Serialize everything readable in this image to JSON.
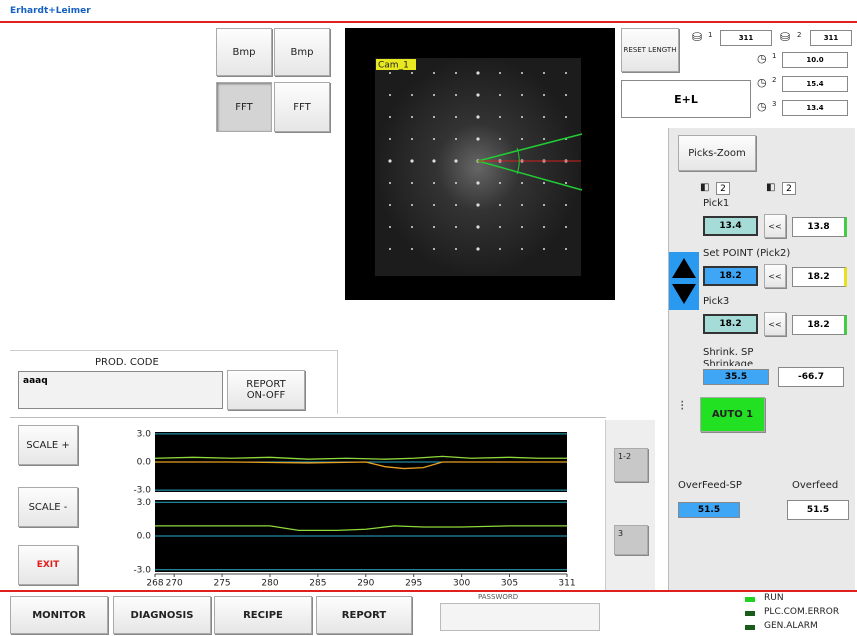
{
  "header": {
    "title": "Erhardt+Leimer"
  },
  "camera": {
    "buttons": [
      "Bmp",
      "Bmp",
      "FFT",
      "FFT"
    ],
    "label": "Cam_1"
  },
  "counters": {
    "reset": "RESET LENGTH",
    "lengths": [
      {
        "index": "1",
        "value": "311"
      },
      {
        "index": "2",
        "value": "311"
      }
    ],
    "gauges": [
      {
        "index": "1",
        "value": "10.0"
      },
      {
        "index": "2",
        "value": "15.4"
      },
      {
        "index": "3",
        "value": "13.4"
      }
    ],
    "brand": "E+L"
  },
  "picks": {
    "zoom": "Picks-Zoom",
    "icons": [
      "2",
      "2"
    ],
    "rows": [
      {
        "label": "Pick1",
        "value": "13.4",
        "button": "<<",
        "actual": "13.8"
      },
      {
        "label": "Set POINT (Pick2)",
        "value": "18.2",
        "button": "<<",
        "actual": "18.2"
      },
      {
        "label": "Pick3",
        "value": "18.2",
        "button": "<<",
        "actual": "18.2"
      }
    ],
    "shrink_label": "Shrink. SP",
    "shrinkage_label": "Shrinkage",
    "shrink_sp": "35.5",
    "shrinkage": "-66.7",
    "auto": "AUTO 1",
    "overfeed_sp_label": "OverFeed-SP",
    "overfeed_sp": "51.5",
    "overfeed_label": "Overfeed",
    "overfeed": "51.5"
  },
  "prod": {
    "label": "PROD. CODE",
    "code": "aaaq",
    "report": "REPORT ON-OFF"
  },
  "trend": {
    "buttons": [
      "SCALE +",
      "SCALE -",
      "EXIT"
    ],
    "groups": [
      "1-2",
      "3"
    ],
    "xlim": [
      268,
      311
    ],
    "xticks": [
      268,
      270,
      275,
      280,
      285,
      290,
      295,
      300,
      305,
      311
    ],
    "plots": [
      {
        "ylim": [
          -3.2,
          3.2
        ],
        "yticks": [
          {
            "value": 3,
            "label": "3.0"
          },
          {
            "value": 0,
            "label": "0.0"
          },
          {
            "value": -3,
            "label": "-3.0"
          }
        ],
        "series": [
          {
            "color": "#8fd93a",
            "x": [
              268,
              272,
              276,
              280,
              284,
              288,
              292,
              295,
              298,
              301,
              305,
              308,
              311
            ],
            "values": [
              0.4,
              0.5,
              0.4,
              0.5,
              0.3,
              0.4,
              0.3,
              0.4,
              0.6,
              0.4,
              0.5,
              0.4,
              0.4
            ]
          },
          {
            "color": "#e8a020",
            "x": [
              268,
              276,
              284,
              290,
              292,
              294,
              296,
              298,
              305,
              311
            ],
            "values": [
              0.0,
              0.0,
              -0.1,
              0.0,
              -0.5,
              -0.7,
              -0.6,
              0.0,
              0.0,
              0.0
            ]
          }
        ]
      },
      {
        "ylim": [
          -3.2,
          3.2
        ],
        "yticks": [
          {
            "value": 3,
            "label": "3.0"
          },
          {
            "value": 0,
            "label": "0.0"
          },
          {
            "value": -3,
            "label": "-3.0"
          }
        ],
        "series": [
          {
            "color": "#8fd93a",
            "x": [
              268,
              275,
              280,
              283,
              287,
              290,
              293,
              296,
              300,
              305,
              311
            ],
            "values": [
              0.9,
              0.9,
              0.9,
              0.5,
              0.5,
              0.6,
              0.9,
              0.8,
              0.8,
              0.9,
              0.9
            ]
          }
        ]
      }
    ]
  },
  "nav": {
    "buttons": [
      "MONITOR",
      "DIAGNOSIS",
      "RECIPE",
      "REPORT"
    ],
    "password": "PASSWORD"
  },
  "status": [
    "RUN",
    "PLC.COM.ERROR",
    "GEN.ALARM"
  ]
}
